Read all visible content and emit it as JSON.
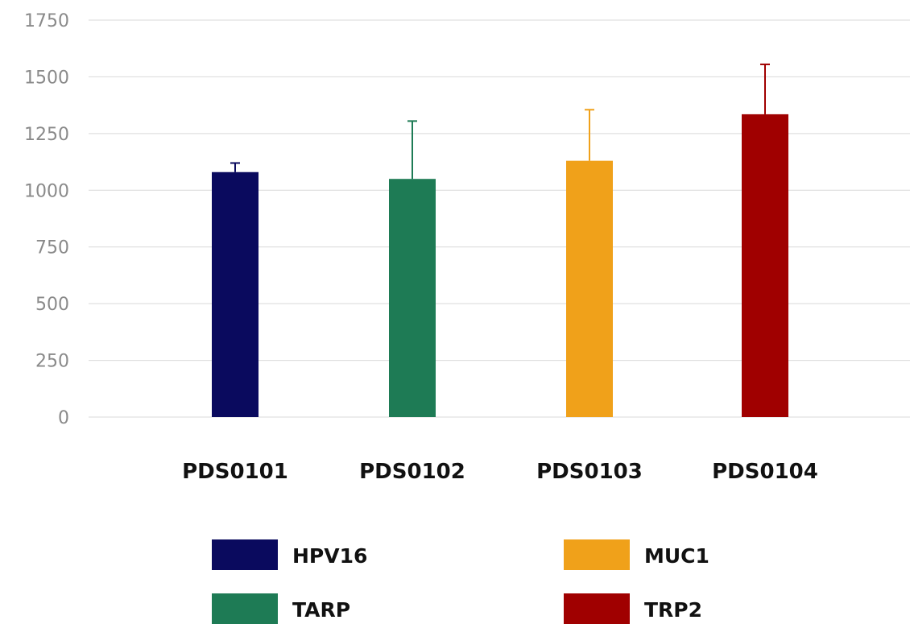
{
  "chart_data": {
    "type": "bar",
    "title": "",
    "xlabel": "",
    "ylabel": "",
    "categories": [
      "PDS0101",
      "PDS0102",
      "PDS0103",
      "PDS0104"
    ],
    "values": [
      1080,
      1050,
      1130,
      1335
    ],
    "error_upper": [
      1120,
      1305,
      1355,
      1555
    ],
    "colors": [
      "#0a0a5e",
      "#1e7b55",
      "#f0a11a",
      "#a00000"
    ],
    "series_names": [
      "HPV16",
      "TARP",
      "MUC1",
      "TRP2"
    ],
    "ylim": [
      0,
      1750
    ],
    "yticks": [
      0,
      250,
      500,
      750,
      1000,
      1250,
      1500,
      1750
    ],
    "grid": true,
    "legend_position": "bottom"
  }
}
